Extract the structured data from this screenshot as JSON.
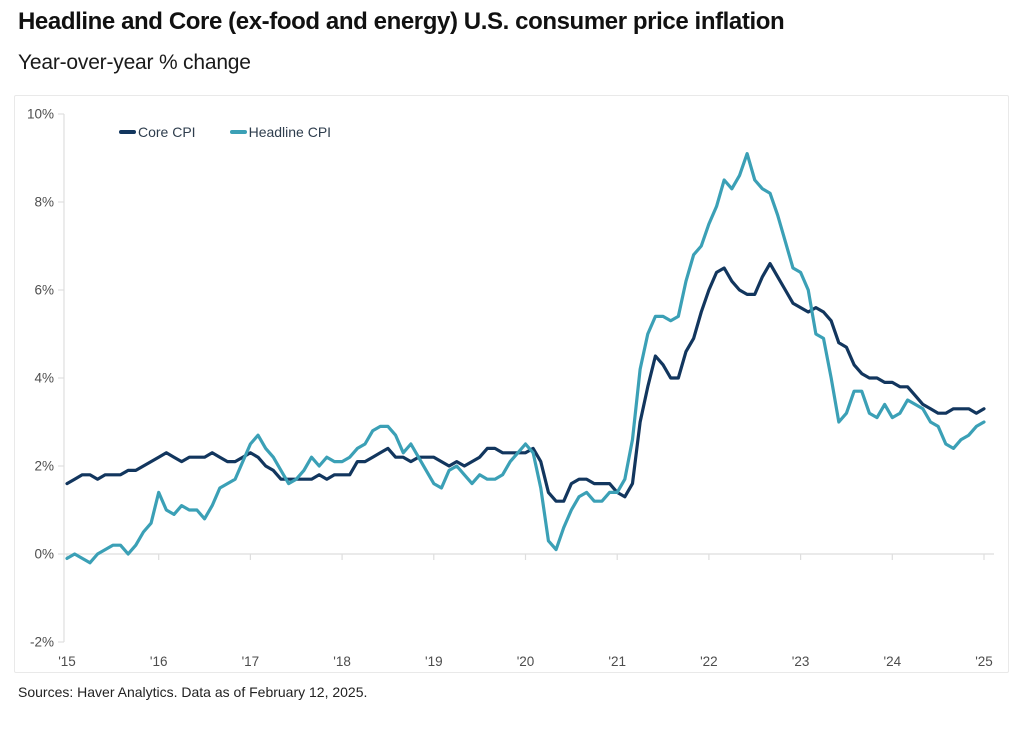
{
  "header": {
    "title": "Headline and Core (ex-food and energy) U.S. consumer price inflation",
    "subtitle": "Year-over-year % change"
  },
  "legend": {
    "core_label": "Core CPI",
    "headline_label": "Headline CPI"
  },
  "footer": {
    "source": "Sources: Haver Analytics. Data as of February 12, 2025."
  },
  "colors": {
    "core_line": "#12365e",
    "headline_line": "#3ba0b6",
    "axis": "#dedede",
    "tick_label": "#4d4d4d",
    "card_border": "#e9e9e9",
    "legend_text": "#2e3d4d"
  },
  "chart_data": {
    "type": "line",
    "title": "Headline and Core (ex-food and energy) U.S. consumer price inflation",
    "subtitle": "Year-over-year % change",
    "frequency": "monthly",
    "x_start": "2015-01",
    "x_end": "2025-01",
    "ylim": [
      -2,
      10
    ],
    "y_ticks": [
      10,
      8,
      6,
      4,
      2,
      0,
      -2
    ],
    "y_tick_labels": [
      "10%",
      "8%",
      "6%",
      "4%",
      "2%",
      "0%",
      "-2%"
    ],
    "x_tick_month_indices": [
      0,
      12,
      24,
      36,
      48,
      60,
      72,
      84,
      96,
      108,
      120
    ],
    "x_tick_labels": [
      "'15",
      "'16",
      "'17",
      "'18",
      "'19",
      "'20",
      "'21",
      "'22",
      "'23",
      "'24",
      "'25"
    ],
    "grid": "zero-baseline-only",
    "legend_position": "top-left-inside",
    "series": [
      {
        "name": "Core CPI",
        "color": "#12365e",
        "values": [
          1.6,
          1.7,
          1.8,
          1.8,
          1.7,
          1.8,
          1.8,
          1.8,
          1.9,
          1.9,
          2.0,
          2.1,
          2.2,
          2.3,
          2.2,
          2.1,
          2.2,
          2.2,
          2.2,
          2.3,
          2.2,
          2.1,
          2.1,
          2.2,
          2.3,
          2.2,
          2.0,
          1.9,
          1.7,
          1.7,
          1.7,
          1.7,
          1.7,
          1.8,
          1.7,
          1.8,
          1.8,
          1.8,
          2.1,
          2.1,
          2.2,
          2.3,
          2.4,
          2.2,
          2.2,
          2.1,
          2.2,
          2.2,
          2.2,
          2.1,
          2.0,
          2.1,
          2.0,
          2.1,
          2.2,
          2.4,
          2.4,
          2.3,
          2.3,
          2.3,
          2.3,
          2.4,
          2.1,
          1.4,
          1.2,
          1.2,
          1.6,
          1.7,
          1.7,
          1.6,
          1.6,
          1.6,
          1.4,
          1.3,
          1.6,
          3.0,
          3.8,
          4.5,
          4.3,
          4.0,
          4.0,
          4.6,
          4.9,
          5.5,
          6.0,
          6.4,
          6.5,
          6.2,
          6.0,
          5.9,
          5.9,
          6.3,
          6.6,
          6.3,
          6.0,
          5.7,
          5.6,
          5.5,
          5.6,
          5.5,
          5.3,
          4.8,
          4.7,
          4.3,
          4.1,
          4.0,
          4.0,
          3.9,
          3.9,
          3.8,
          3.8,
          3.6,
          3.4,
          3.3,
          3.2,
          3.2,
          3.3,
          3.3,
          3.3,
          3.2,
          3.3
        ]
      },
      {
        "name": "Headline CPI",
        "color": "#3ba0b6",
        "values": [
          -0.1,
          0.0,
          -0.1,
          -0.2,
          0.0,
          0.1,
          0.2,
          0.2,
          0.0,
          0.2,
          0.5,
          0.7,
          1.4,
          1.0,
          0.9,
          1.1,
          1.0,
          1.0,
          0.8,
          1.1,
          1.5,
          1.6,
          1.7,
          2.1,
          2.5,
          2.7,
          2.4,
          2.2,
          1.9,
          1.6,
          1.7,
          1.9,
          2.2,
          2.0,
          2.2,
          2.1,
          2.1,
          2.2,
          2.4,
          2.5,
          2.8,
          2.9,
          2.9,
          2.7,
          2.3,
          2.5,
          2.2,
          1.9,
          1.6,
          1.5,
          1.9,
          2.0,
          1.8,
          1.6,
          1.8,
          1.7,
          1.7,
          1.8,
          2.1,
          2.3,
          2.5,
          2.3,
          1.5,
          0.3,
          0.1,
          0.6,
          1.0,
          1.3,
          1.4,
          1.2,
          1.2,
          1.4,
          1.4,
          1.7,
          2.6,
          4.2,
          5.0,
          5.4,
          5.4,
          5.3,
          5.4,
          6.2,
          6.8,
          7.0,
          7.5,
          7.9,
          8.5,
          8.3,
          8.6,
          9.1,
          8.5,
          8.3,
          8.2,
          7.7,
          7.1,
          6.5,
          6.4,
          6.0,
          5.0,
          4.9,
          4.0,
          3.0,
          3.2,
          3.7,
          3.7,
          3.2,
          3.1,
          3.4,
          3.1,
          3.2,
          3.5,
          3.4,
          3.3,
          3.0,
          2.9,
          2.5,
          2.4,
          2.6,
          2.7,
          2.9,
          3.0
        ]
      }
    ]
  }
}
